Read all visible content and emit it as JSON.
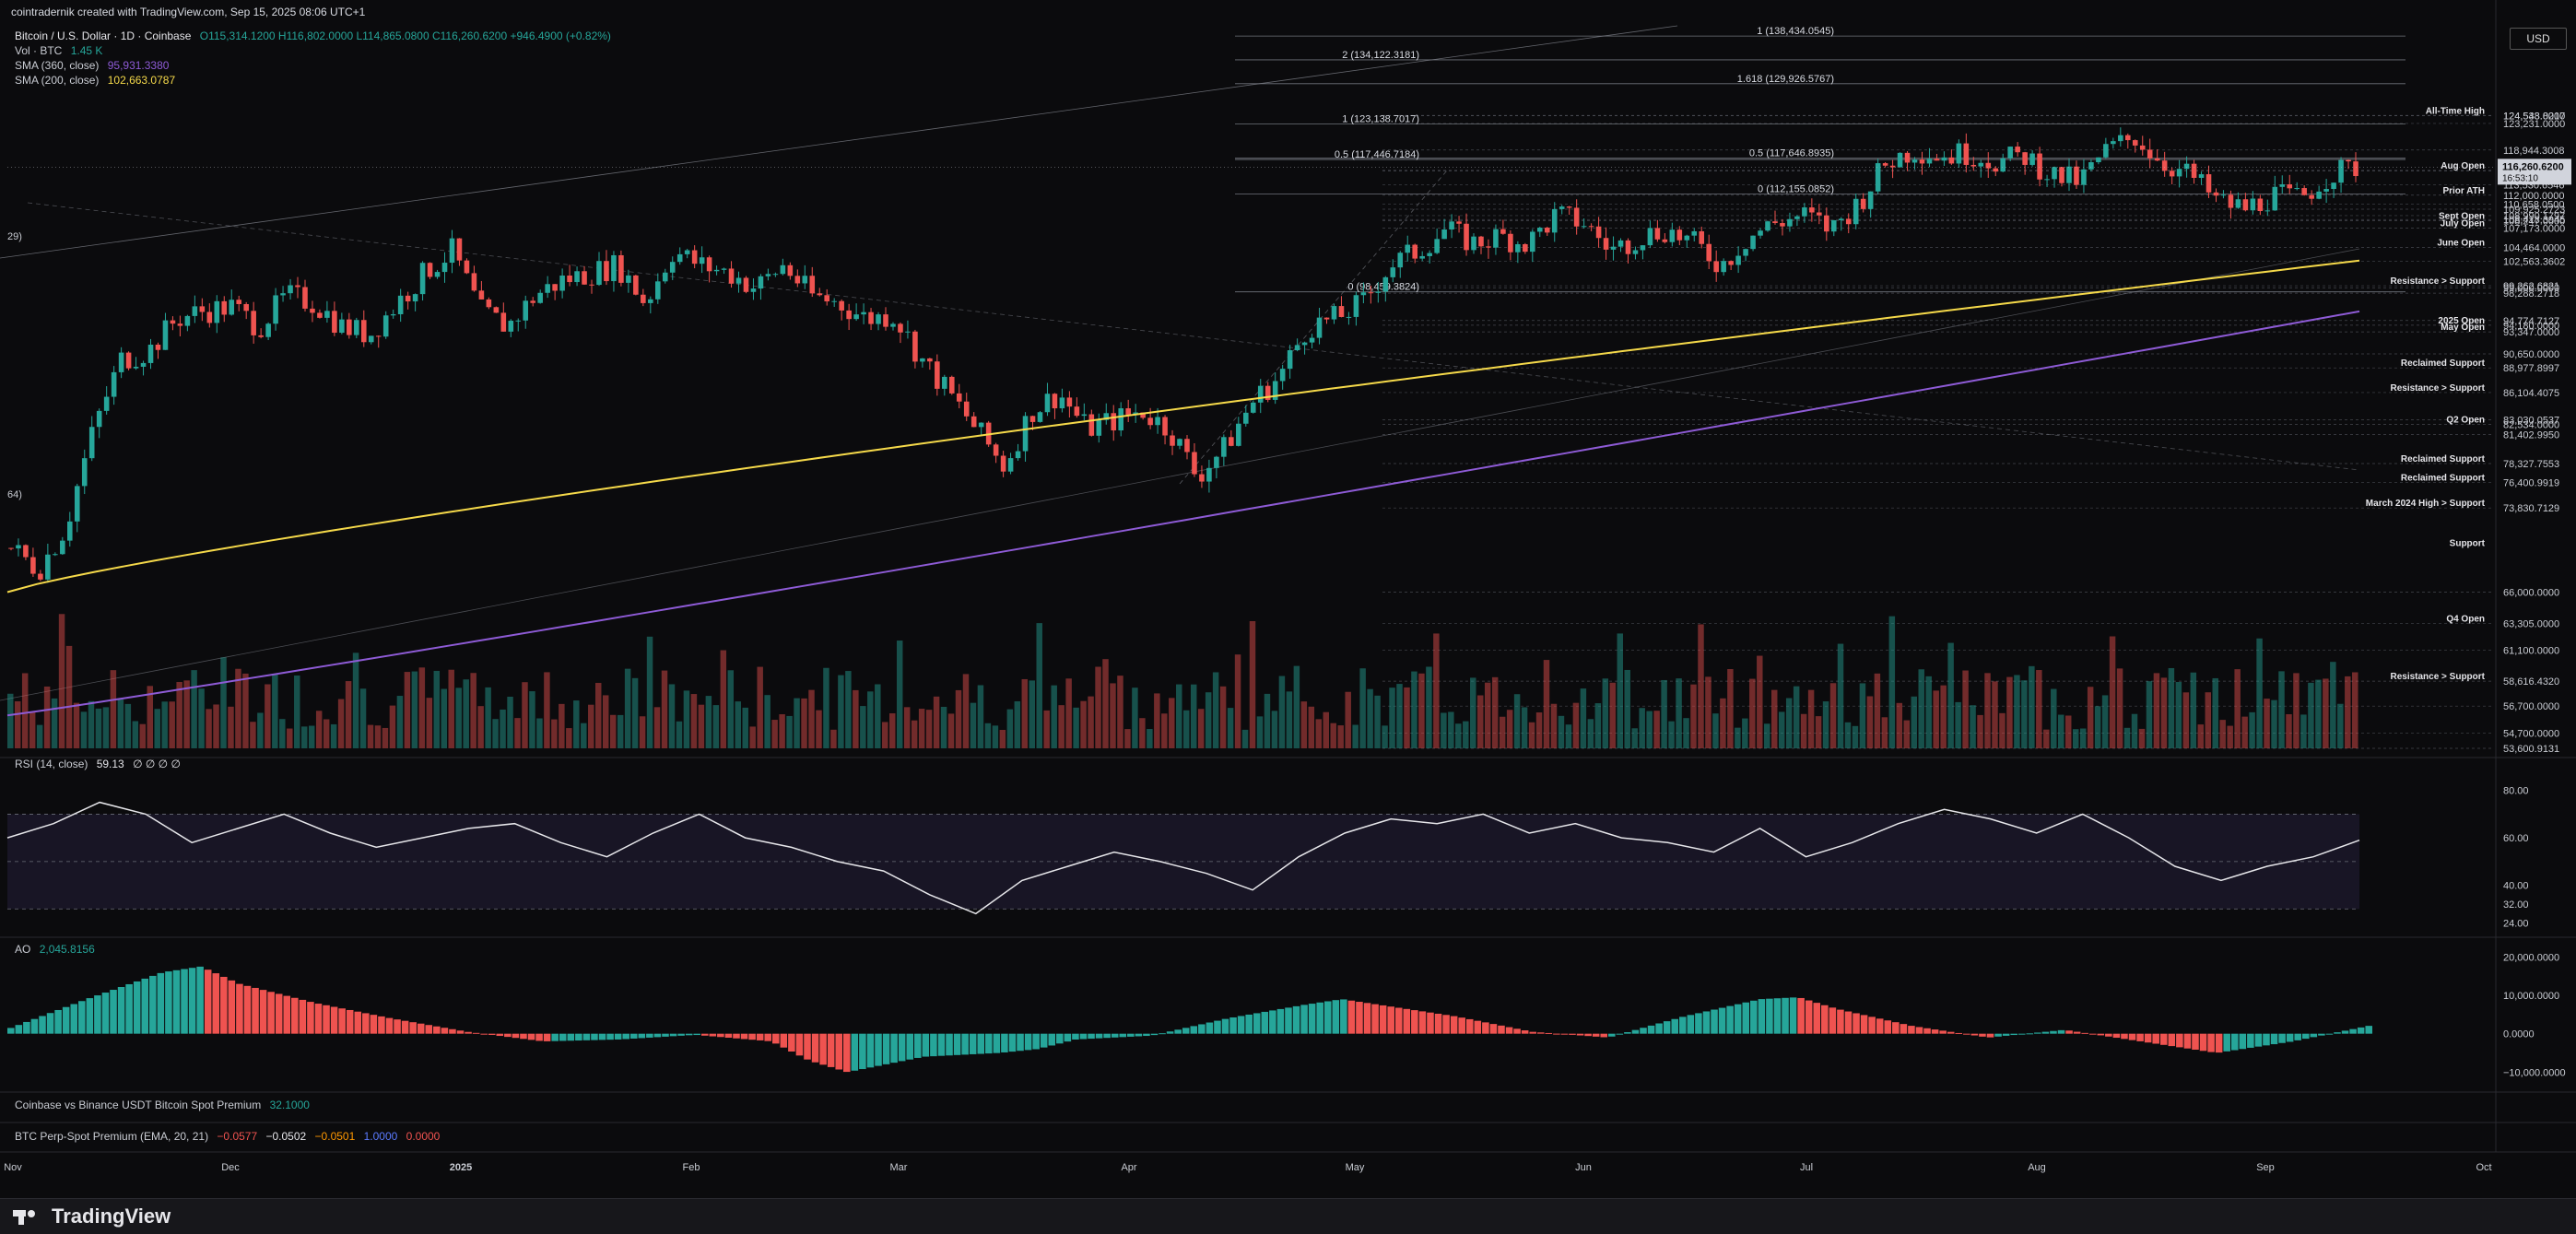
{
  "header": {
    "credit": "cointradernik created with TradingView.com, Sep 15, 2025 08:06 UTC+1",
    "symbol": "Bitcoin / U.S. Dollar · 1D · Coinbase",
    "ohlc": "O115,314.1200 H116,802.0000 L114,865.0800 C116,260.6200 +946.4900 (+0.82%)",
    "vol_label": "Vol · BTC",
    "vol_value": "1.45 K",
    "sma360_label": "SMA (360, close)",
    "sma360_value": "95,931.3380",
    "sma200_label": "SMA (200, close)",
    "sma200_value": "102,663.0787",
    "currency": "USD"
  },
  "panes": {
    "rsi_label": "RSI (14, close)",
    "rsi_value": "59.13",
    "rsi_extra": "∅ ∅ ∅ ∅",
    "ao_label": "AO",
    "ao_value": "2,045.8156",
    "premium_label": "Coinbase vs Binance USDT Bitcoin Spot Premium",
    "premium_value": "32.1000",
    "perp_label": "BTC Perp-Spot Premium (EMA, 20, 21)",
    "perp_values": [
      "−0.0577",
      "−0.0502",
      "−0.0501",
      "1.0000",
      "0.0000"
    ]
  },
  "colors": {
    "up": "#26a69a",
    "down": "#ef5350",
    "sma200": "#f5d94a",
    "sma360": "#8e5bd6",
    "bg": "#0b0b0d",
    "grid_text": "#c9ccd3"
  },
  "chart_data": [
    {
      "type": "candlestick",
      "title": "Bitcoin / U.S. Dollar · 1D · Coinbase",
      "x_tick_labels": [
        "Nov",
        "Dec",
        "2025",
        "Feb",
        "Mar",
        "Apr",
        "May",
        "Jun",
        "Jul",
        "Aug",
        "Sep",
        "Oct"
      ],
      "ylabel": "USD",
      "ylim": [
        53600,
        140000
      ],
      "y_scale": "log",
      "current_price": "116,260.6200",
      "countdown": "16:53:10",
      "series": [
        {
          "name": "SMA (360, close)",
          "last": 95931.338
        },
        {
          "name": "SMA (200, close)",
          "last": 102663.0787
        }
      ],
      "price_axis_labels": [
        {
          "value": 124548.8217,
          "text": "124,548.8217"
        },
        {
          "value": 124533.0,
          "text": "124,533.0000"
        },
        {
          "value": 123231.0,
          "text": "123,231.0000"
        },
        {
          "value": 118944.3008,
          "text": "118,944.3008"
        },
        {
          "value": 115756.0,
          "text": "115,756.0000"
        },
        {
          "value": 115638.6274,
          "text": "115,638.6274"
        },
        {
          "value": 113530.6546,
          "text": "113,530.6546"
        },
        {
          "value": 112000.0,
          "text": "112,000.0000"
        },
        {
          "value": 110658.05,
          "text": "110,658.0500"
        },
        {
          "value": 109925.2723,
          "text": "109,925.2723"
        },
        {
          "value": 108990.1797,
          "text": "108,990.1797"
        },
        {
          "value": 108418.3945,
          "text": "108,418.3945"
        },
        {
          "value": 108247.0,
          "text": "108,247.0000"
        },
        {
          "value": 107173.0,
          "text": "107,173.0000"
        },
        {
          "value": 104464.0,
          "text": "104,464.0000"
        },
        {
          "value": 102563.3602,
          "text": "102,563.3602"
        },
        {
          "value": 99262.6821,
          "text": "99,262.6821"
        },
        {
          "value": 99000.0,
          "text": "99,000.0000"
        },
        {
          "value": 98288.2718,
          "text": "98,288.2718"
        },
        {
          "value": 94774.7127,
          "text": "94,774.7127"
        },
        {
          "value": 94180.0,
          "text": "94,180.0000"
        },
        {
          "value": 93347.0,
          "text": "93,347.0000"
        },
        {
          "value": 90650.0,
          "text": "90,650.0000"
        },
        {
          "value": 88977.8997,
          "text": "88,977.8997"
        },
        {
          "value": 86104.4075,
          "text": "86,104.4075"
        },
        {
          "value": 83030.0537,
          "text": "83,030.0537"
        },
        {
          "value": 82534.0,
          "text": "82,534.0000"
        },
        {
          "value": 81402.995,
          "text": "81,402.9950"
        },
        {
          "value": 78327.7553,
          "text": "78,327.7553"
        },
        {
          "value": 76400.9919,
          "text": "76,400.9919"
        },
        {
          "value": 73830.7129,
          "text": "73,830.7129"
        },
        {
          "value": 66000.0,
          "text": "66,000.0000"
        },
        {
          "value": 63305.0,
          "text": "63,305.0000"
        },
        {
          "value": 61100.0,
          "text": "61,100.0000"
        },
        {
          "value": 58616.432,
          "text": "58,616.4320"
        },
        {
          "value": 56700.0,
          "text": "56,700.0000"
        },
        {
          "value": 54700.0,
          "text": "54,700.0000"
        },
        {
          "value": 53600.9131,
          "text": "53,600.9131"
        }
      ],
      "level_annotations": [
        {
          "text": "All-Time High",
          "value": 124533
        },
        {
          "text": "Aug Open",
          "value": 115756
        },
        {
          "text": "Prior ATH",
          "value": 112000
        },
        {
          "text": "Sept Open",
          "value": 108247
        },
        {
          "text": "July Open",
          "value": 107173
        },
        {
          "text": "June Open",
          "value": 104464
        },
        {
          "text": "Resistance > Support",
          "value": 99262
        },
        {
          "text": "2025 Open",
          "value": 94180
        },
        {
          "text": "May Open",
          "value": 93347
        },
        {
          "text": "Reclaimed Support",
          "value": 88977
        },
        {
          "text": "Resistance > Support",
          "value": 86104
        },
        {
          "text": "Q2 Open",
          "value": 82534
        },
        {
          "text": "Reclaimed Support",
          "value": 78327
        },
        {
          "text": "Reclaimed Support",
          "value": 76400
        },
        {
          "text": "Support",
          "value": 70000
        },
        {
          "text": "March 2024 High > Support",
          "value": 73830
        },
        {
          "text": "Q4 Open",
          "value": 63305
        },
        {
          "text": "Resistance > Support",
          "value": 58616
        }
      ],
      "fib_labels": [
        {
          "text": "1 (138,434.0545)",
          "value": 138434.0545
        },
        {
          "text": "2 (134,122.3181)",
          "value": 134122.3181
        },
        {
          "text": "1.618 (129,926.5767)",
          "value": 129926.5767
        },
        {
          "text": "1 (123,138.7017)",
          "value": 123138.7017
        },
        {
          "text": "0.5 (117,646.8935)",
          "value": 117646.8935
        },
        {
          "text": "0.5 (117,446.7184)",
          "value": 117446.7184
        },
        {
          "text": "0 (112,155.0852)",
          "value": 112155.0852
        },
        {
          "text": "0 (98,459.3824)",
          "value": 98459.3824
        }
      ],
      "left_edge_labels": [
        "29)",
        "64)"
      ],
      "price_path": [
        [
          0,
          70000
        ],
        [
          6,
          68000
        ],
        [
          12,
          72000
        ],
        [
          18,
          82000
        ],
        [
          24,
          90000
        ],
        [
          30,
          91000
        ],
        [
          36,
          95000
        ],
        [
          42,
          96000
        ],
        [
          48,
          96500
        ],
        [
          54,
          94000
        ],
        [
          60,
          98000
        ],
        [
          66,
          97000
        ],
        [
          72,
          94000
        ],
        [
          78,
          93000
        ],
        [
          84,
          97000
        ],
        [
          90,
          101000
        ],
        [
          96,
          104000
        ],
        [
          102,
          96000
        ],
        [
          108,
          94000
        ],
        [
          114,
          98000
        ],
        [
          120,
          100000
        ],
        [
          126,
          101000
        ],
        [
          132,
          102000
        ],
        [
          138,
          97000
        ],
        [
          144,
          104000
        ],
        [
          150,
          102000
        ],
        [
          156,
          101000
        ],
        [
          162,
          99000
        ],
        [
          168,
          102000
        ],
        [
          174,
          98000
        ],
        [
          180,
          97000
        ],
        [
          186,
          95000
        ],
        [
          192,
          95500
        ],
        [
          198,
          90000
        ],
        [
          204,
          86000
        ],
        [
          210,
          82000
        ],
        [
          216,
          78000
        ],
        [
          222,
          84000
        ],
        [
          228,
          86000
        ],
        [
          234,
          82000
        ],
        [
          240,
          83000
        ],
        [
          246,
          84000
        ],
        [
          252,
          82000
        ],
        [
          258,
          77000
        ],
        [
          264,
          80000
        ],
        [
          270,
          85000
        ],
        [
          276,
          88000
        ],
        [
          282,
          94000
        ],
        [
          288,
          95000
        ],
        [
          294,
          97000
        ],
        [
          300,
          102000
        ],
        [
          306,
          104000
        ],
        [
          312,
          107000
        ],
        [
          318,
          105000
        ],
        [
          324,
          106000
        ],
        [
          330,
          105000
        ],
        [
          336,
          109000
        ],
        [
          342,
          108000
        ],
        [
          348,
          104000
        ],
        [
          354,
          106000
        ],
        [
          360,
          107000
        ],
        [
          366,
          105000
        ],
        [
          372,
          102000
        ],
        [
          378,
          106000
        ],
        [
          384,
          108000
        ],
        [
          390,
          109000
        ],
        [
          396,
          107000
        ],
        [
          402,
          111000
        ],
        [
          408,
          117000
        ],
        [
          414,
          119000
        ],
        [
          420,
          118000
        ],
        [
          426,
          118500
        ],
        [
          432,
          117000
        ],
        [
          438,
          118000
        ],
        [
          444,
          115000
        ],
        [
          450,
          114000
        ],
        [
          456,
          119000
        ],
        [
          462,
          121000
        ],
        [
          468,
          117000
        ],
        [
          474,
          115000
        ],
        [
          480,
          111000
        ],
        [
          486,
          110000
        ],
        [
          492,
          112000
        ],
        [
          498,
          111500
        ],
        [
          504,
          115000
        ],
        [
          510,
          116260
        ]
      ]
    },
    {
      "type": "bar",
      "title": "Vol · BTC",
      "last": "1.45 K"
    },
    {
      "type": "line",
      "title": "RSI (14, close)",
      "last": 59.13,
      "ylim": [
        20,
        90
      ],
      "y_tick_labels": [
        "80.00",
        "60.00",
        "40.00",
        "32.00",
        "24.00"
      ],
      "bands": [
        70,
        50,
        30
      ],
      "path": [
        [
          0,
          60
        ],
        [
          10,
          66
        ],
        [
          20,
          75
        ],
        [
          30,
          70
        ],
        [
          40,
          58
        ],
        [
          50,
          64
        ],
        [
          60,
          70
        ],
        [
          70,
          62
        ],
        [
          80,
          56
        ],
        [
          90,
          60
        ],
        [
          100,
          64
        ],
        [
          110,
          66
        ],
        [
          120,
          58
        ],
        [
          130,
          52
        ],
        [
          140,
          62
        ],
        [
          150,
          70
        ],
        [
          160,
          60
        ],
        [
          170,
          56
        ],
        [
          180,
          50
        ],
        [
          190,
          46
        ],
        [
          200,
          36
        ],
        [
          210,
          28
        ],
        [
          220,
          42
        ],
        [
          230,
          48
        ],
        [
          240,
          54
        ],
        [
          250,
          50
        ],
        [
          260,
          45
        ],
        [
          270,
          38
        ],
        [
          280,
          52
        ],
        [
          290,
          62
        ],
        [
          300,
          68
        ],
        [
          310,
          66
        ],
        [
          320,
          70
        ],
        [
          330,
          62
        ],
        [
          340,
          66
        ],
        [
          350,
          60
        ],
        [
          360,
          58
        ],
        [
          370,
          54
        ],
        [
          380,
          64
        ],
        [
          390,
          52
        ],
        [
          400,
          58
        ],
        [
          410,
          66
        ],
        [
          420,
          72
        ],
        [
          430,
          68
        ],
        [
          440,
          62
        ],
        [
          450,
          70
        ],
        [
          460,
          60
        ],
        [
          470,
          48
        ],
        [
          480,
          42
        ],
        [
          490,
          48
        ],
        [
          500,
          52
        ],
        [
          510,
          59
        ]
      ]
    },
    {
      "type": "bar",
      "title": "AO",
      "last": 2045.8156,
      "ylim": [
        -14000,
        22000
      ],
      "y_tick_labels": [
        "20,000.0000",
        "10,000.0000",
        "0.0000",
        "−10,000.0000"
      ],
      "path": [
        [
          0,
          1500
        ],
        [
          20,
          9000
        ],
        [
          40,
          16000
        ],
        [
          50,
          17500
        ],
        [
          60,
          13000
        ],
        [
          80,
          8000
        ],
        [
          100,
          4000
        ],
        [
          120,
          500
        ],
        [
          140,
          -2000
        ],
        [
          160,
          -1500
        ],
        [
          180,
          -300
        ],
        [
          200,
          -2000
        ],
        [
          210,
          -7000
        ],
        [
          220,
          -10000
        ],
        [
          230,
          -8000
        ],
        [
          240,
          -6000
        ],
        [
          260,
          -5000
        ],
        [
          270,
          -4000
        ],
        [
          280,
          -1500
        ],
        [
          300,
          -500
        ],
        [
          320,
          4000
        ],
        [
          340,
          7500
        ],
        [
          350,
          9000
        ],
        [
          360,
          7500
        ],
        [
          380,
          4500
        ],
        [
          400,
          500
        ],
        [
          420,
          -1000
        ],
        [
          440,
          4500
        ],
        [
          460,
          9000
        ],
        [
          470,
          9500
        ],
        [
          480,
          6500
        ],
        [
          500,
          2000
        ],
        [
          520,
          -1000
        ],
        [
          540,
          1000
        ],
        [
          560,
          -2000
        ],
        [
          580,
          -5000
        ],
        [
          600,
          -2000
        ],
        [
          620,
          2045
        ]
      ]
    }
  ],
  "footer": {
    "brand": "TradingView"
  }
}
